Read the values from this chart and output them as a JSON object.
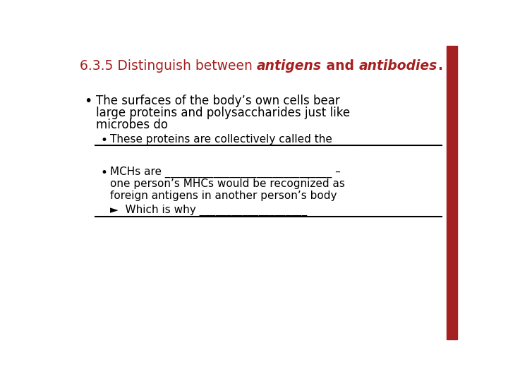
{
  "title_normal": "6.3.5 Distinguish between ",
  "title_italic1": "antigens",
  "title_between": " and ",
  "title_italic2": "antibodies",
  "title_end": ".",
  "title_color": "#A52020",
  "title_fontsize": 13.5,
  "bg_color": "#FFFFFF",
  "right_bar_color": "#A52020",
  "bullet1_line1": "The surfaces of the body’s own cells bear",
  "bullet1_line2": "large proteins and polysaccharides just like",
  "bullet1_line3": "microbes do",
  "sub_bullet1": "These proteins are collectively called the ____",
  "sub_bullet2_text": "MCHs are _______________________________ –",
  "sub_bullet2_line2": "one person’s MHCs would be recognized as",
  "sub_bullet2_line3": "foreign antigens in another person’s body",
  "arrow_bullet": "►  Which is why ____________________",
  "body_fontsize": 12.0,
  "sub_fontsize": 11.0,
  "line_color": "#000000",
  "line_width": 1.5
}
